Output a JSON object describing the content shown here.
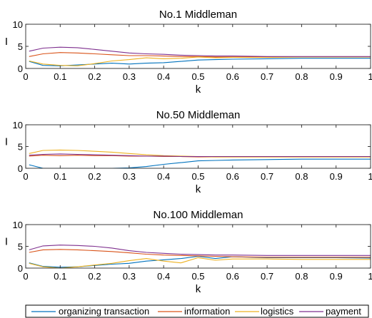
{
  "chart_data": [
    {
      "type": "line",
      "title": "No.1 Middleman",
      "xlabel": "k",
      "ylabel": "I",
      "xlim": [
        0,
        1
      ],
      "ylim": [
        0,
        10
      ],
      "xticks": [
        "0",
        "0.1",
        "0.2",
        "0.3",
        "0.4",
        "0.5",
        "0.6",
        "0.7",
        "0.8",
        "0.9",
        "1"
      ],
      "yticks": [
        "0",
        "5",
        "10"
      ],
      "x": [
        0.01,
        0.05,
        0.1,
        0.15,
        0.2,
        0.25,
        0.3,
        0.35,
        0.4,
        0.45,
        0.5,
        0.55,
        0.6,
        0.7,
        0.8,
        0.9,
        1.0
      ],
      "series": [
        {
          "name": "organizing transaction",
          "values": [
            1.6,
            0.7,
            0.6,
            0.8,
            1.0,
            1.2,
            1.0,
            1.2,
            1.3,
            1.6,
            1.9,
            2.0,
            2.1,
            2.2,
            2.3,
            2.3,
            2.3
          ]
        },
        {
          "name": "information",
          "values": [
            2.7,
            3.3,
            3.6,
            3.5,
            3.3,
            3.1,
            2.9,
            2.9,
            2.8,
            2.7,
            2.7,
            2.6,
            2.6,
            2.6,
            2.6,
            2.6,
            2.6
          ]
        },
        {
          "name": "logistics",
          "values": [
            1.7,
            1.0,
            0.7,
            0.6,
            1.1,
            1.7,
            2.0,
            2.4,
            2.2,
            2.3,
            2.6,
            2.4,
            2.5,
            2.5,
            2.6,
            2.6,
            2.6
          ]
        },
        {
          "name": "payment",
          "values": [
            3.9,
            4.6,
            4.8,
            4.7,
            4.3,
            3.9,
            3.5,
            3.3,
            3.2,
            3.0,
            2.9,
            2.8,
            2.8,
            2.7,
            2.7,
            2.7,
            2.7
          ]
        }
      ]
    },
    {
      "type": "line",
      "title": "No.50 Middleman",
      "xlabel": "k",
      "ylabel": "I",
      "xlim": [
        0,
        1
      ],
      "ylim": [
        0,
        10
      ],
      "xticks": [
        "0",
        "0.1",
        "0.2",
        "0.3",
        "0.4",
        "0.5",
        "0.6",
        "0.7",
        "0.8",
        "0.9",
        "1"
      ],
      "yticks": [
        "0",
        "5",
        "10"
      ],
      "x": [
        0.01,
        0.05,
        0.1,
        0.15,
        0.2,
        0.25,
        0.3,
        0.35,
        0.4,
        0.45,
        0.5,
        0.55,
        0.6,
        0.7,
        0.8,
        0.9,
        1.0
      ],
      "series": [
        {
          "name": "organizing transaction",
          "values": [
            0.8,
            0.0,
            0.0,
            0.0,
            0.0,
            0.0,
            0.1,
            0.4,
            0.9,
            1.3,
            1.7,
            1.8,
            1.9,
            2.0,
            2.1,
            2.1,
            2.1
          ]
        },
        {
          "name": "information",
          "values": [
            2.8,
            3.0,
            2.9,
            3.0,
            2.9,
            2.9,
            2.8,
            2.8,
            2.7,
            2.7,
            2.6,
            2.6,
            2.6,
            2.6,
            2.6,
            2.6,
            2.6
          ]
        },
        {
          "name": "logistics",
          "values": [
            3.4,
            4.1,
            4.2,
            4.1,
            3.9,
            3.7,
            3.4,
            3.1,
            2.9,
            2.8,
            2.7,
            2.6,
            2.6,
            2.6,
            2.6,
            2.6,
            2.6
          ]
        },
        {
          "name": "payment",
          "values": [
            3.0,
            3.2,
            3.3,
            3.2,
            3.1,
            3.0,
            2.9,
            2.8,
            2.8,
            2.7,
            2.7,
            2.7,
            2.7,
            2.7,
            2.7,
            2.7,
            2.7
          ]
        }
      ]
    },
    {
      "type": "line",
      "title": "No.100 Middleman",
      "xlabel": "k",
      "ylabel": "I",
      "xlim": [
        0,
        1
      ],
      "ylim": [
        0,
        10
      ],
      "xticks": [
        "0",
        "0.1",
        "0.2",
        "0.3",
        "0.4",
        "0.5",
        "0.6",
        "0.7",
        "0.8",
        "0.9",
        "1"
      ],
      "yticks": [
        "0",
        "5",
        "10"
      ],
      "x": [
        0.01,
        0.05,
        0.1,
        0.15,
        0.2,
        0.25,
        0.3,
        0.35,
        0.4,
        0.45,
        0.5,
        0.55,
        0.6,
        0.7,
        0.8,
        0.9,
        1.0
      ],
      "series": [
        {
          "name": "organizing transaction",
          "values": [
            1.2,
            0.4,
            0.2,
            0.3,
            0.6,
            0.9,
            1.1,
            1.6,
            1.9,
            2.2,
            2.7,
            2.2,
            2.6,
            2.4,
            2.4,
            2.4,
            2.3
          ]
        },
        {
          "name": "information",
          "values": [
            3.6,
            4.2,
            4.3,
            4.2,
            4.0,
            3.8,
            3.5,
            3.2,
            3.0,
            2.9,
            2.8,
            2.7,
            2.6,
            2.5,
            2.5,
            2.5,
            2.5
          ]
        },
        {
          "name": "logistics",
          "values": [
            1.1,
            0.3,
            0.0,
            0.3,
            0.7,
            1.1,
            1.7,
            2.2,
            1.6,
            1.2,
            2.4,
            1.8,
            2.1,
            2.1,
            2.0,
            2.0,
            2.0
          ]
        },
        {
          "name": "payment",
          "values": [
            4.2,
            5.1,
            5.3,
            5.2,
            5.0,
            4.6,
            4.0,
            3.6,
            3.4,
            3.2,
            3.1,
            3.0,
            3.0,
            2.9,
            2.9,
            2.9,
            2.9
          ]
        }
      ]
    }
  ],
  "legend": {
    "placement": "bottom",
    "entries": [
      {
        "label": "organizing transaction",
        "color": "#0072BD"
      },
      {
        "label": "information",
        "color": "#D95319"
      },
      {
        "label": "logistics",
        "color": "#EDB120"
      },
      {
        "label": "payment",
        "color": "#7E2F8E"
      }
    ]
  }
}
